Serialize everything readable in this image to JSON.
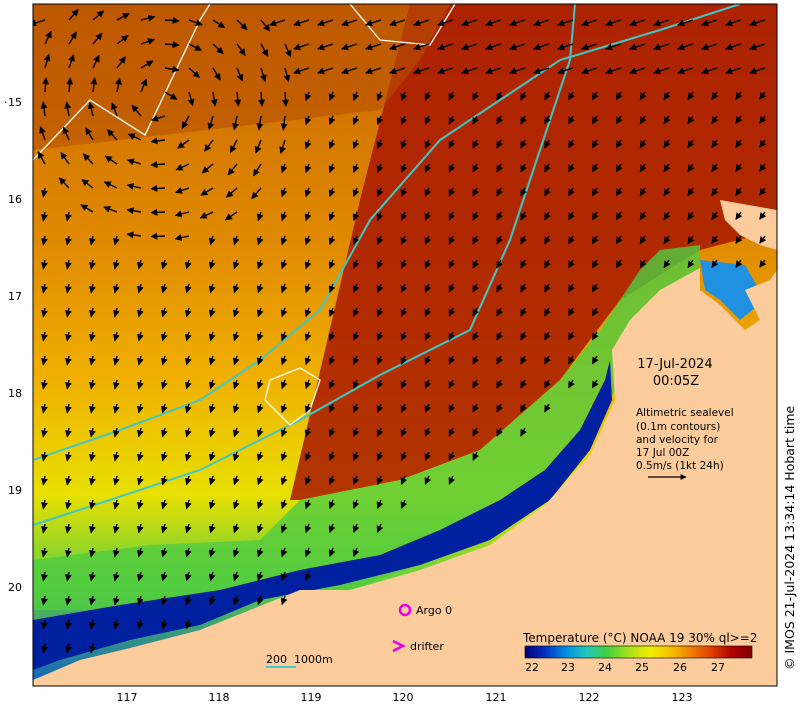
{
  "axes": {
    "lat_ticks": [
      "15",
      "16",
      "17",
      "18",
      "19",
      "20"
    ],
    "lon_ticks": [
      "117",
      "118",
      "119",
      "120",
      "121",
      "122",
      "123"
    ]
  },
  "annotation": {
    "date": "17-Jul-2024",
    "time": "00:05Z",
    "desc_line1": "Altimetric sealevel",
    "desc_line2": "(0.1m contours)",
    "desc_line3": "and velocity for",
    "desc_line4": "17 Jul 00Z",
    "desc_line5": "0.5m/s (1kt 24h)"
  },
  "legend": {
    "argo_label": "Argo 0",
    "drifter_label": "drifter",
    "argo_color": "#e600e6",
    "drifter_color": "#e600e6"
  },
  "scale": {
    "label_200": "200",
    "label_1000": "1000m",
    "isobath_color": "#40c8c8"
  },
  "colorbar": {
    "title": "Temperature (°C) NOAA 19 30% ql>=2",
    "ticks": [
      "22",
      "23",
      "24",
      "25",
      "26",
      "27"
    ],
    "stops": [
      "#00007a",
      "#0030c0",
      "#0090e0",
      "#20c8c0",
      "#40d040",
      "#a0e020",
      "#f0f000",
      "#f8c000",
      "#f08000",
      "#e04000",
      "#b00000",
      "#800000"
    ]
  },
  "credit": "© IMOS 21-Jul-2024 13:34:14 Hobart time",
  "land_color": "#fccc9c"
}
